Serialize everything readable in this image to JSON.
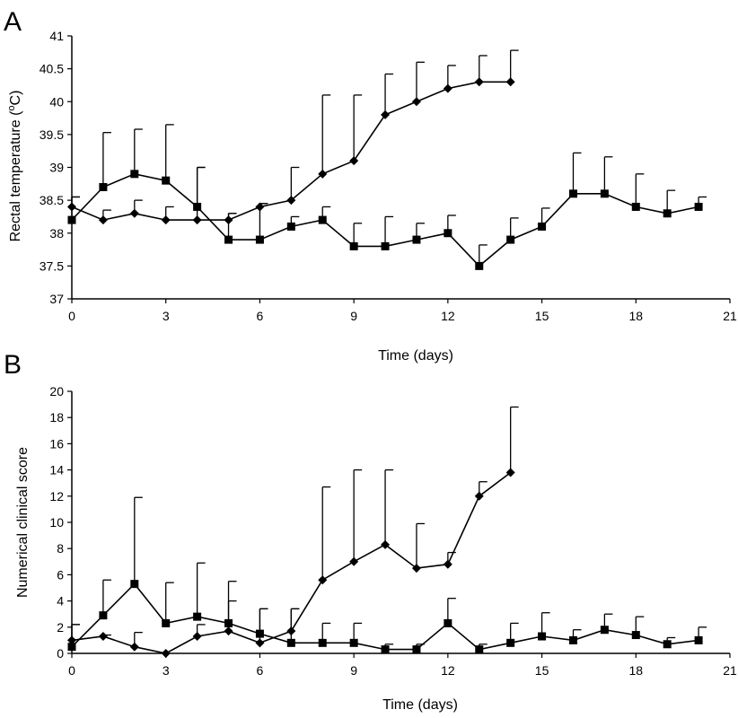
{
  "chart_data": [
    {
      "type": "line",
      "panel_label": "A",
      "title": "",
      "xlabel": "Time (days)",
      "ylabel": "Rectal temperature (°C)",
      "ylabel_parts": {
        "pre": "Rectal temperature (",
        "sup": "o",
        "post": "C)"
      },
      "xlim": [
        0,
        21
      ],
      "ylim": [
        37,
        41
      ],
      "xticks": [
        0,
        3,
        6,
        9,
        12,
        15,
        18,
        21
      ],
      "yticks": [
        37,
        37.5,
        38,
        38.5,
        39,
        39.5,
        40,
        40.5,
        41
      ],
      "grid": false,
      "legend": "none",
      "series": [
        {
          "marker": "diamond",
          "x": [
            0,
            1,
            2,
            3,
            4,
            5,
            6,
            7,
            8,
            9,
            10,
            11,
            12,
            13,
            14
          ],
          "y": [
            38.4,
            38.2,
            38.3,
            38.2,
            38.2,
            38.2,
            38.4,
            38.5,
            38.9,
            39.1,
            39.8,
            40.0,
            40.2,
            40.3,
            40.3
          ],
          "err": [
            0.15,
            0.15,
            0.2,
            0.2,
            0.8,
            0.1,
            0.05,
            0.5,
            1.2,
            1.0,
            0.62,
            0.6,
            0.35,
            0.4,
            0.48
          ]
        },
        {
          "marker": "square",
          "x": [
            0,
            1,
            2,
            3,
            4,
            5,
            6,
            7,
            8,
            9,
            10,
            11,
            12,
            13,
            14,
            15,
            16,
            17,
            18,
            19,
            20
          ],
          "y": [
            38.2,
            38.7,
            38.9,
            38.8,
            38.4,
            37.9,
            37.9,
            38.1,
            38.2,
            37.8,
            37.8,
            37.9,
            38.0,
            37.5,
            37.9,
            38.1,
            38.6,
            38.6,
            38.4,
            38.3,
            38.4
          ],
          "err": [
            0.35,
            0.83,
            0.68,
            0.85,
            0.6,
            0.4,
            0.55,
            0.15,
            0.2,
            0.35,
            0.45,
            0.25,
            0.27,
            0.32,
            0.33,
            0.28,
            0.62,
            0.56,
            0.5,
            0.35,
            0.15
          ]
        }
      ]
    },
    {
      "type": "line",
      "panel_label": "B",
      "title": "",
      "xlabel": "Time (days)",
      "ylabel": "Numerical clinical score",
      "xlim": [
        0,
        21
      ],
      "ylim": [
        0,
        20
      ],
      "xticks": [
        0,
        3,
        6,
        9,
        12,
        15,
        18,
        21
      ],
      "yticks": [
        0,
        2,
        4,
        6,
        8,
        10,
        12,
        14,
        16,
        18,
        20
      ],
      "grid": false,
      "legend": "none",
      "series": [
        {
          "marker": "diamond",
          "x": [
            0,
            1,
            2,
            3,
            4,
            5,
            6,
            7,
            8,
            9,
            10,
            11,
            12,
            13,
            14
          ],
          "y": [
            1.0,
            1.3,
            0.5,
            0.0,
            1.3,
            1.7,
            0.8,
            1.7,
            5.6,
            7.0,
            8.3,
            6.5,
            6.8,
            12.0,
            13.8
          ],
          "err": [
            1.2,
            0.1,
            1.1,
            0.0,
            0.9,
            2.3,
            2.6,
            1.7,
            7.1,
            7.0,
            5.7,
            3.4,
            0.9,
            1.1,
            5.0
          ]
        },
        {
          "marker": "square",
          "x": [
            0,
            1,
            2,
            3,
            4,
            5,
            6,
            7,
            8,
            9,
            10,
            11,
            12,
            13,
            14,
            15,
            16,
            17,
            18,
            19,
            20
          ],
          "y": [
            0.5,
            2.9,
            5.3,
            2.3,
            2.8,
            2.3,
            1.5,
            0.8,
            0.8,
            0.8,
            0.3,
            0.3,
            2.3,
            0.3,
            0.8,
            1.3,
            1.0,
            1.8,
            1.4,
            0.7,
            1.0
          ],
          "err": [
            1.7,
            2.7,
            6.6,
            3.1,
            4.1,
            3.2,
            1.9,
            2.6,
            1.5,
            1.5,
            0.4,
            0.4,
            1.9,
            0.4,
            1.5,
            1.8,
            0.8,
            1.2,
            1.4,
            0.5,
            1.0
          ]
        }
      ]
    }
  ]
}
